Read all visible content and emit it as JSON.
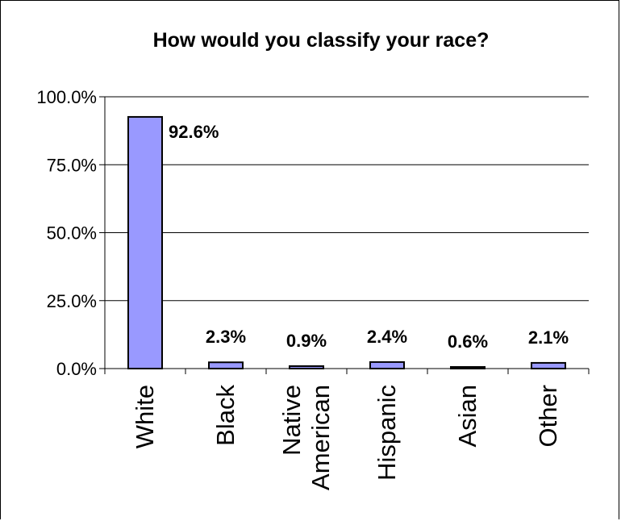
{
  "chart_data": {
    "type": "bar",
    "title": "How would you classify your race?",
    "categories": [
      "White",
      "Black",
      "Native American",
      "Hispanic",
      "Asian",
      "Other"
    ],
    "category_lines": [
      [
        "White"
      ],
      [
        "Black"
      ],
      [
        "Native",
        "American"
      ],
      [
        "Hispanic"
      ],
      [
        "Asian"
      ],
      [
        "Other"
      ]
    ],
    "values": [
      92.6,
      2.3,
      0.9,
      2.4,
      0.6,
      2.1
    ],
    "data_labels": [
      "92.6%",
      "2.3%",
      "0.9%",
      "2.4%",
      "0.6%",
      "2.1%"
    ],
    "yticks": [
      0,
      25,
      50,
      75,
      100
    ],
    "ytick_labels": [
      "0.0%",
      "25.0%",
      "50.0%",
      "75.0%",
      "100.0%"
    ],
    "ylim": [
      0,
      100
    ],
    "xlabel": "",
    "ylabel": "",
    "grid": true,
    "legend": "none",
    "bar_color": "#9999ff",
    "bar_edge_color": "#000000"
  }
}
